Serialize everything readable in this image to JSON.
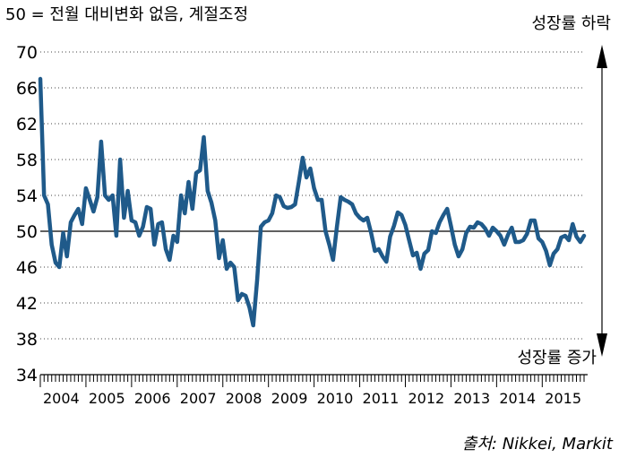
{
  "chart_data": {
    "type": "line",
    "subtitle": "50 = 전월 대비변화 없음, 계절조정",
    "annotation_up": "성장률 하락",
    "annotation_down": "성장률 증가",
    "source": "출처: Nikkei, Markit",
    "ylim": [
      34,
      70
    ],
    "y_ticks": [
      70,
      66,
      62,
      58,
      54,
      50,
      46,
      42,
      38,
      34
    ],
    "grid": "dotted horizontal",
    "reference_line": 50,
    "x_start": "2004-01",
    "x_end": "2015-12",
    "x_tick_labels": [
      "2004",
      "2005",
      "2006",
      "2007",
      "2008",
      "2009",
      "2010",
      "2011",
      "2012",
      "2013",
      "2014",
      "2015"
    ],
    "line_color": "#1f5a8a",
    "series": [
      {
        "x": [
          "2004-01",
          "2004-02",
          "2004-03",
          "2004-04",
          "2004-05",
          "2004-06",
          "2004-07",
          "2004-08",
          "2004-09",
          "2004-10",
          "2004-11",
          "2004-12",
          "2005-01",
          "2005-02",
          "2005-03",
          "2005-04",
          "2005-05",
          "2005-06",
          "2005-07",
          "2005-08",
          "2005-09",
          "2005-10",
          "2005-11",
          "2005-12",
          "2006-01",
          "2006-02",
          "2006-03",
          "2006-04",
          "2006-05",
          "2006-06",
          "2006-07",
          "2006-08",
          "2006-09",
          "2006-10",
          "2006-11",
          "2006-12",
          "2007-01",
          "2007-02",
          "2007-03",
          "2007-04",
          "2007-05",
          "2007-06",
          "2007-07",
          "2007-08",
          "2007-09",
          "2007-10",
          "2007-11",
          "2007-12",
          "2008-01",
          "2008-02",
          "2008-03",
          "2008-04",
          "2008-05",
          "2008-06",
          "2008-07",
          "2008-08",
          "2008-09",
          "2008-10",
          "2008-11",
          "2008-12",
          "2009-01",
          "2009-02",
          "2009-03",
          "2009-04",
          "2009-05",
          "2009-06",
          "2009-07",
          "2009-08",
          "2009-09",
          "2009-10",
          "2009-11",
          "2009-12",
          "2010-01",
          "2010-02",
          "2010-03",
          "2010-04",
          "2010-05",
          "2010-06",
          "2010-07",
          "2010-08",
          "2010-09",
          "2010-10",
          "2010-11",
          "2010-12",
          "2011-01",
          "2011-02",
          "2011-03",
          "2011-04",
          "2011-05",
          "2011-06",
          "2011-07",
          "2011-08",
          "2011-09",
          "2011-10",
          "2011-11",
          "2011-12",
          "2012-01",
          "2012-02",
          "2012-03",
          "2012-04",
          "2012-05",
          "2012-06",
          "2012-07",
          "2012-08",
          "2012-09",
          "2012-10",
          "2012-11",
          "2012-12",
          "2013-01",
          "2013-02",
          "2013-03",
          "2013-04",
          "2013-05",
          "2013-06",
          "2013-07",
          "2013-08",
          "2013-09",
          "2013-10",
          "2013-11",
          "2013-12",
          "2014-01",
          "2014-02",
          "2014-03",
          "2014-04",
          "2014-05",
          "2014-06",
          "2014-07",
          "2014-08",
          "2014-09",
          "2014-10",
          "2014-11",
          "2014-12",
          "2015-01",
          "2015-02",
          "2015-03",
          "2015-04",
          "2015-05",
          "2015-06",
          "2015-07",
          "2015-08",
          "2015-09",
          "2015-10",
          "2015-11",
          "2015-12"
        ],
        "y": [
          67.0,
          54.0,
          53.0,
          48.5,
          46.5,
          46.0,
          49.8,
          47.2,
          51.0,
          51.8,
          52.5,
          50.8,
          54.8,
          53.5,
          52.2,
          53.8,
          60.0,
          54.0,
          53.5,
          54.0,
          49.5,
          58.0,
          51.5,
          54.5,
          51.2,
          51.0,
          49.5,
          50.5,
          52.7,
          52.5,
          48.5,
          50.8,
          51.0,
          48.0,
          46.8,
          49.5,
          48.8,
          54.0,
          52.0,
          55.5,
          52.5,
          56.5,
          56.8,
          60.5,
          54.5,
          53.2,
          51.2,
          47.0,
          49.0,
          45.8,
          46.5,
          46.0,
          42.3,
          43.0,
          42.8,
          41.5,
          39.5,
          44.5,
          50.5,
          51.0,
          51.2,
          52.0,
          54.0,
          53.8,
          52.8,
          52.6,
          52.7,
          53.0,
          55.5,
          58.2,
          56.0,
          57.0,
          54.8,
          53.5,
          53.5,
          50.0,
          48.5,
          46.8,
          50.5,
          53.8,
          53.5,
          53.3,
          53.0,
          52.0,
          51.5,
          51.2,
          51.5,
          49.8,
          47.8,
          48.0,
          47.2,
          46.6,
          49.4,
          50.6,
          52.1,
          51.8,
          50.7,
          49.0,
          47.3,
          47.6,
          45.8,
          47.5,
          47.9,
          50.0,
          49.8,
          51.0,
          51.8,
          52.5,
          50.6,
          48.5,
          47.2,
          48.0,
          49.8,
          50.5,
          50.4,
          51.0,
          50.8,
          50.3,
          49.5,
          50.4,
          50.0,
          49.5,
          48.5,
          49.6,
          50.4,
          48.8,
          48.8,
          49.0,
          49.7,
          51.2,
          51.2,
          49.2,
          48.8,
          47.8,
          46.2,
          47.5,
          48.0,
          49.3,
          49.5,
          49.0,
          50.8,
          49.4,
          48.8,
          49.5
        ]
      }
    ]
  }
}
